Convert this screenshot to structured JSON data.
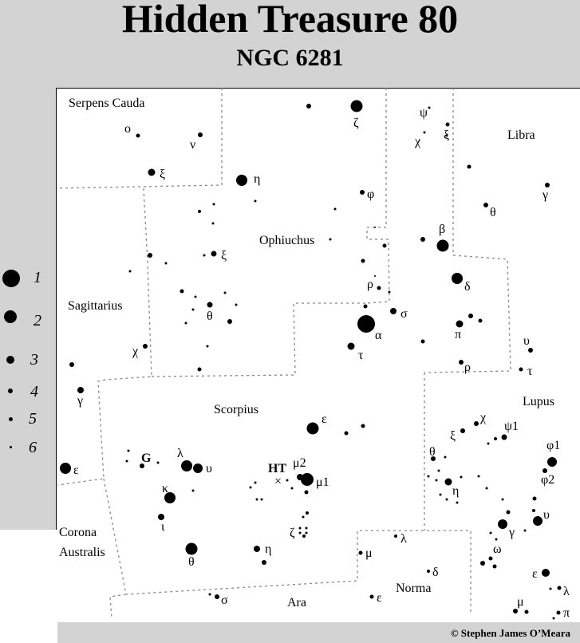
{
  "title": "Hidden Treasure 80",
  "subtitle": "NGC  6281",
  "credit": "© Stephen James O’Meara",
  "legend": [
    "1",
    "2",
    "3",
    "4",
    "5",
    "6"
  ],
  "constellations": [
    "Serpens Cauda",
    "Libra",
    "Ophiuchus",
    "Sagittarius",
    "Scorpius",
    "Lupus",
    "Corona",
    "Australis",
    "Norma",
    "Ara"
  ],
  "star_labels": [
    "ο",
    "ν",
    "ξ",
    "η",
    "ζ",
    "ψ",
    "χ",
    "ξ",
    "γ",
    "θ",
    "φ",
    "β",
    "ξ",
    "δ",
    "ρ",
    "σ",
    "α",
    "θ",
    "π",
    "χ",
    "τ",
    "υ",
    "ρ",
    "τ",
    "γ",
    "ε",
    "ε",
    "G",
    "λ",
    "υ",
    "HT",
    "μ2",
    "μ1",
    "κ",
    "ι",
    "ζ",
    "θ",
    "η",
    "χ",
    "ψ1",
    "ξ",
    "θ",
    "φ1",
    "η",
    "φ2",
    "υ",
    "γ",
    "ω",
    "ε",
    "λ",
    "μ",
    "δ",
    "μ",
    "ε",
    "σ",
    "λ",
    "π",
    "Norma"
  ]
}
